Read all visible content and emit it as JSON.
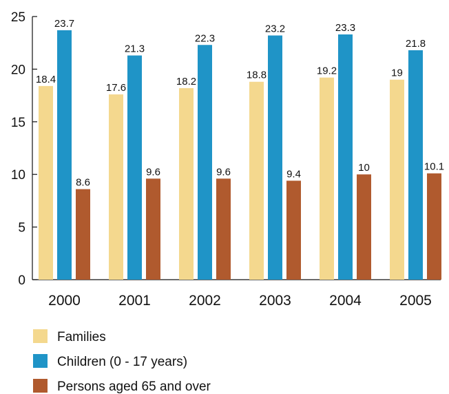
{
  "chart_data": {
    "type": "bar",
    "categories": [
      "2000",
      "2001",
      "2002",
      "2003",
      "2004",
      "2005"
    ],
    "series": [
      {
        "name": "Families",
        "color": "#f4d88e",
        "values": [
          18.4,
          17.6,
          18.2,
          18.8,
          19.2,
          19
        ]
      },
      {
        "name": "Children (0 - 17 years)",
        "color": "#1f94c7",
        "values": [
          23.7,
          21.3,
          22.3,
          23.2,
          23.3,
          21.8
        ]
      },
      {
        "name": "Persons aged 65 and over",
        "color": "#b05a2e",
        "values": [
          8.6,
          9.6,
          9.6,
          9.4,
          10,
          10.1
        ]
      }
    ],
    "value_labels": [
      [
        "18.4",
        "17.6",
        "18.2",
        "18.8",
        "19.2",
        "19"
      ],
      [
        "23.7",
        "21.3",
        "22.3",
        "23.2",
        "23.3",
        "21.8"
      ],
      [
        "8.6",
        "9.6",
        "9.6",
        "9.4",
        "10",
        "10.1"
      ]
    ],
    "yticks": [
      "0",
      "5",
      "10",
      "15",
      "20",
      "25"
    ],
    "ylim": [
      0,
      25
    ],
    "grid": false,
    "legend_position": "bottom-left"
  }
}
